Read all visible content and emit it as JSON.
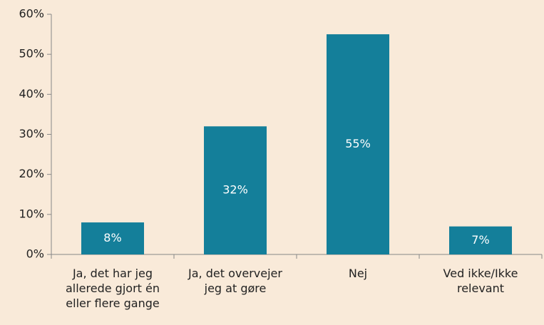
{
  "chart_data": {
    "type": "bar",
    "categories": [
      "Ja, det har jeg allerede gjort én eller flere gange",
      "Ja, det overvejer jeg at gøre",
      "Nej",
      "Ved ikke/Ikke relevant"
    ],
    "values": [
      8,
      32,
      55,
      7
    ],
    "value_labels": [
      "8%",
      "32%",
      "55%",
      "7%"
    ],
    "color": "#147f9a",
    "ylim": [
      0,
      60
    ],
    "yticks": [
      {
        "value": 0,
        "label": "0%"
      },
      {
        "value": 10,
        "label": "10%"
      },
      {
        "value": 20,
        "label": "20%"
      },
      {
        "value": 30,
        "label": "30%"
      },
      {
        "value": 40,
        "label": "40%"
      },
      {
        "value": 50,
        "label": "50%"
      },
      {
        "value": 60,
        "label": "60%"
      }
    ],
    "grid": false
  }
}
